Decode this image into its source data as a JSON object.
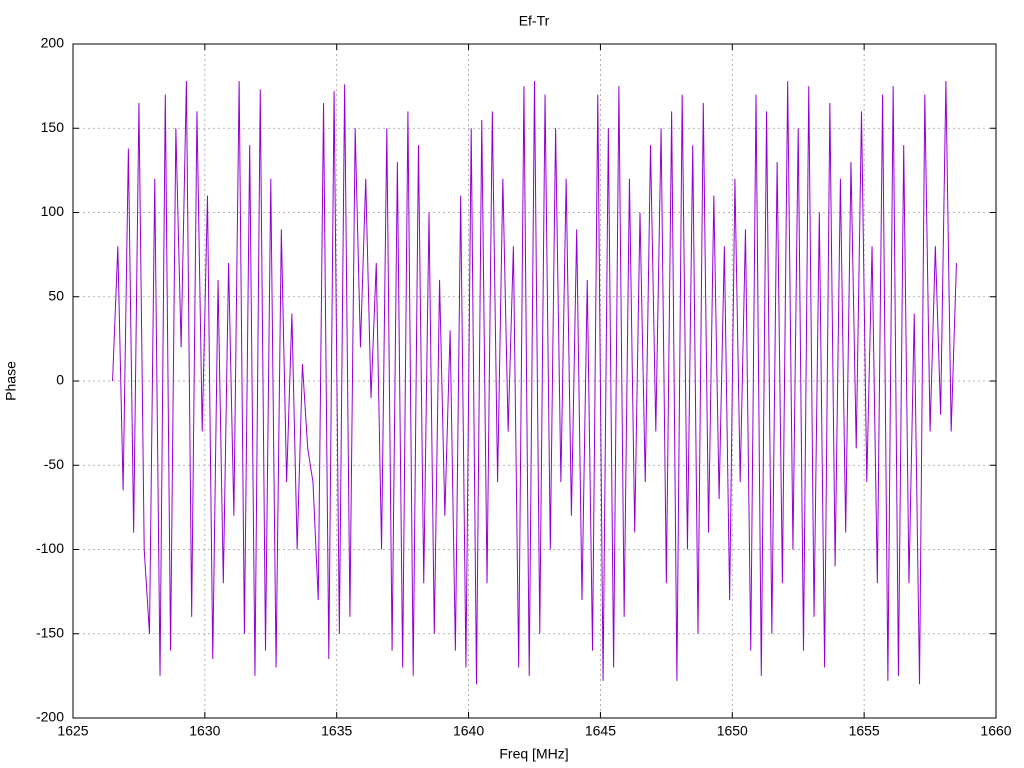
{
  "chart_data": {
    "type": "line",
    "title": "Ef-Tr",
    "x_label": "Freq [MHz]",
    "y_label": "Phase",
    "xlim": [
      1625,
      1660
    ],
    "xticks": [
      1625,
      1630,
      1635,
      1640,
      1645,
      1650,
      1655,
      1660
    ],
    "ylim": [
      -200,
      200
    ],
    "yticks": [
      -200,
      -150,
      -100,
      -50,
      0,
      50,
      100,
      150,
      200
    ],
    "grid": true,
    "x": [
      1626.5,
      1626.7,
      1626.9,
      1627.1,
      1627.3,
      1627.5,
      1627.7,
      1627.9,
      1628.1,
      1628.3,
      1628.5,
      1628.7,
      1628.9,
      1629.1,
      1629.3,
      1629.5,
      1629.7,
      1629.9,
      1630.1,
      1630.3,
      1630.5,
      1630.7,
      1630.9,
      1631.1,
      1631.3,
      1631.5,
      1631.7,
      1631.9,
      1632.1,
      1632.3,
      1632.5,
      1632.7,
      1632.9,
      1633.1,
      1633.3,
      1633.5,
      1633.7,
      1633.9,
      1634.1,
      1634.3,
      1634.5,
      1634.7,
      1634.9,
      1635.1,
      1635.3,
      1635.5,
      1635.7,
      1635.9,
      1636.1,
      1636.3,
      1636.5,
      1636.7,
      1636.9,
      1637.1,
      1637.3,
      1637.5,
      1637.7,
      1637.9,
      1638.1,
      1638.3,
      1638.5,
      1638.7,
      1638.9,
      1639.1,
      1639.3,
      1639.5,
      1639.7,
      1639.9,
      1640.1,
      1640.3,
      1640.5,
      1640.7,
      1640.9,
      1641.1,
      1641.3,
      1641.5,
      1641.7,
      1641.9,
      1642.1,
      1642.3,
      1642.5,
      1642.7,
      1642.9,
      1643.1,
      1643.3,
      1643.5,
      1643.7,
      1643.9,
      1644.1,
      1644.3,
      1644.5,
      1644.7,
      1644.9,
      1645.1,
      1645.3,
      1645.5,
      1645.7,
      1645.9,
      1646.1,
      1646.3,
      1646.5,
      1646.7,
      1646.9,
      1647.1,
      1647.3,
      1647.5,
      1647.7,
      1647.9,
      1648.1,
      1648.3,
      1648.5,
      1648.7,
      1648.9,
      1649.1,
      1649.3,
      1649.5,
      1649.7,
      1649.9,
      1650.1,
      1650.3,
      1650.5,
      1650.7,
      1650.9,
      1651.1,
      1651.3,
      1651.5,
      1651.7,
      1651.9,
      1652.1,
      1652.3,
      1652.5,
      1652.7,
      1652.9,
      1653.1,
      1653.3,
      1653.5,
      1653.7,
      1653.9,
      1654.1,
      1654.3,
      1654.5,
      1654.7,
      1654.9,
      1655.1,
      1655.3,
      1655.5,
      1655.7,
      1655.9,
      1656.1,
      1656.3,
      1656.5,
      1656.7,
      1656.9,
      1657.1,
      1657.3,
      1657.5,
      1657.7,
      1657.9,
      1658.1,
      1658.3,
      1658.5
    ],
    "series": [
      {
        "color": "#9400d3",
        "values": [
          0,
          80,
          -65,
          138,
          -90,
          165,
          -100,
          -150,
          120,
          -175,
          170,
          -160,
          150,
          20,
          178,
          -140,
          160,
          -30,
          110,
          -165,
          60,
          -120,
          70,
          -80,
          178,
          -150,
          140,
          -175,
          173,
          -160,
          120,
          -170,
          90,
          -60,
          40,
          -100,
          10,
          -40,
          -60,
          -130,
          165,
          -165,
          172,
          -150,
          176,
          -140,
          150,
          20,
          120,
          -10,
          70,
          -100,
          150,
          -160,
          130,
          -170,
          160,
          -175,
          140,
          -120,
          100,
          -150,
          60,
          -80,
          30,
          -160,
          110,
          -170,
          150,
          -180,
          155,
          -120,
          160,
          -60,
          120,
          -30,
          80,
          -170,
          175,
          -175,
          178,
          -150,
          170,
          -100,
          150,
          -60,
          120,
          -80,
          90,
          -130,
          60,
          -160,
          170,
          -178,
          150,
          -170,
          175,
          -140,
          120,
          -90,
          100,
          -60,
          140,
          -30,
          150,
          -120,
          160,
          -178,
          170,
          -100,
          140,
          -150,
          165,
          -90,
          110,
          -70,
          80,
          -130,
          120,
          -60,
          90,
          -160,
          170,
          -175,
          160,
          -150,
          130,
          -120,
          178,
          -100,
          150,
          -160,
          175,
          -140,
          100,
          -170,
          165,
          -110,
          120,
          -90,
          130,
          -40,
          160,
          -60,
          80,
          -120,
          170,
          -178,
          175,
          -175,
          140,
          -120,
          40,
          -180,
          170,
          -30,
          80,
          -20,
          178,
          -30,
          70
        ]
      }
    ]
  }
}
